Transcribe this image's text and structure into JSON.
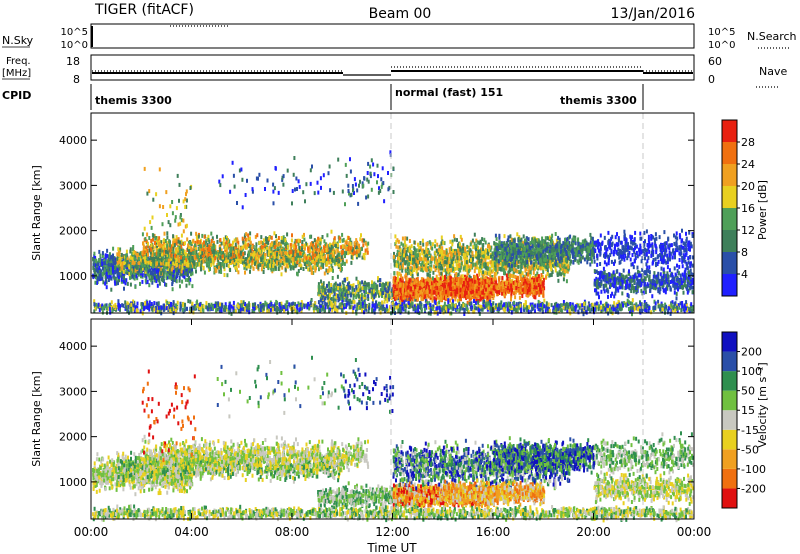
{
  "header": {
    "radar": "TIGER (fitACF)",
    "beam": "Beam 00",
    "date": "13/Jan/2016"
  },
  "left_labels": {
    "nsky": "N.Sky",
    "freq": "Freq.",
    "freq_unit": "[MHz]",
    "cpid": "CPID"
  },
  "right_labels": {
    "nsearch": "N.Search",
    "nave": "Nave"
  },
  "scales": {
    "nsky_ticks": [
      "10^5",
      "10^0"
    ],
    "freq_ticks": [
      "18",
      "8"
    ],
    "nave_ticks": [
      "60",
      "0"
    ]
  },
  "cpid_labels": [
    "themis 3300",
    "normal (fast) 151",
    "themis 3300"
  ],
  "colors": {
    "power": [
      "#2020ff",
      "#2a4fa8",
      "#3e7f5a",
      "#4f9f58",
      "#e8d020",
      "#f0a020",
      "#f07010",
      "#e82010"
    ],
    "velocity": [
      "#e01010",
      "#f07010",
      "#f0a020",
      "#e8d020",
      "#c8c8c0",
      "#70c040",
      "#2f8f4f",
      "#2a4fa8",
      "#1010c0"
    ],
    "mode_divider": "#c8c8c8"
  },
  "chart_data": [
    {
      "type": "heatmap",
      "name": "power",
      "ylabel": "Slant Range [km]",
      "ylim": [
        180,
        4600
      ],
      "yticks": [
        "1000",
        "2000",
        "3000",
        "4000"
      ],
      "x": "time",
      "colorbar": {
        "label": "Power [dB]",
        "ticks": [
          "4",
          "8",
          "12",
          "16",
          "20",
          "24",
          "28"
        ]
      }
    },
    {
      "type": "heatmap",
      "name": "velocity",
      "ylabel": "Slant Range [km]",
      "ylim": [
        180,
        4600
      ],
      "yticks": [
        "1000",
        "2000",
        "3000",
        "4000"
      ],
      "xticks": [
        "00:00",
        "04:00",
        "08:00",
        "12:00",
        "16:00",
        "20:00",
        "00:00"
      ],
      "xlabel": "Time UT",
      "colorbar": {
        "label": "Velocity [m s⁻¹]",
        "ticks": [
          "-200",
          "-100",
          "-50",
          "-15",
          "15",
          "50",
          "100",
          "200"
        ]
      }
    }
  ]
}
